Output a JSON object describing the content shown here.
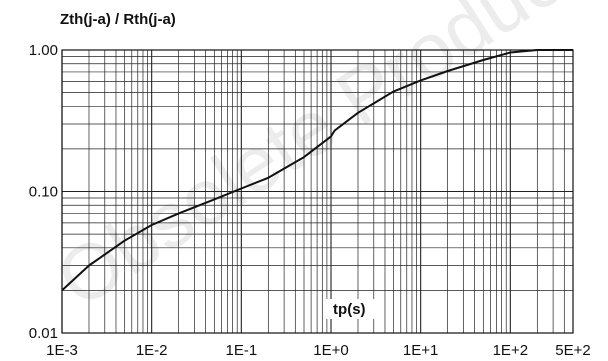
{
  "chart_data": {
    "type": "line",
    "title": "",
    "ylabel": "Zth(j-a) / Rth(j-a)",
    "xlabel": "tp(s)",
    "watermark": "Obsolete Product",
    "x_scale": "log",
    "y_scale": "log",
    "xlim": [
      0.001,
      500
    ],
    "ylim": [
      0.01,
      1.0
    ],
    "grid": true,
    "x_tick_values": [
      0.001,
      0.01,
      0.1,
      1,
      10,
      100,
      500
    ],
    "x_tick_labels": [
      "1E-3",
      "1E-2",
      "1E-1",
      "1E+0",
      "1E+1",
      "1E+2",
      "5E+2"
    ],
    "y_tick_values": [
      0.01,
      0.1,
      1.0
    ],
    "y_tick_labels": [
      "0.01",
      "0.10",
      "1.00"
    ],
    "series": [
      {
        "color": "#111111",
        "x": [
          0.001,
          0.002,
          0.005,
          0.01,
          0.02,
          0.05,
          0.1,
          0.2,
          0.5,
          1,
          1.1,
          2,
          5,
          10,
          20,
          50,
          100,
          200,
          500
        ],
        "y": [
          0.02,
          0.03,
          0.045,
          0.058,
          0.07,
          0.088,
          0.105,
          0.125,
          0.175,
          0.245,
          0.27,
          0.36,
          0.51,
          0.61,
          0.71,
          0.85,
          0.96,
          1.0,
          1.0
        ]
      }
    ]
  }
}
